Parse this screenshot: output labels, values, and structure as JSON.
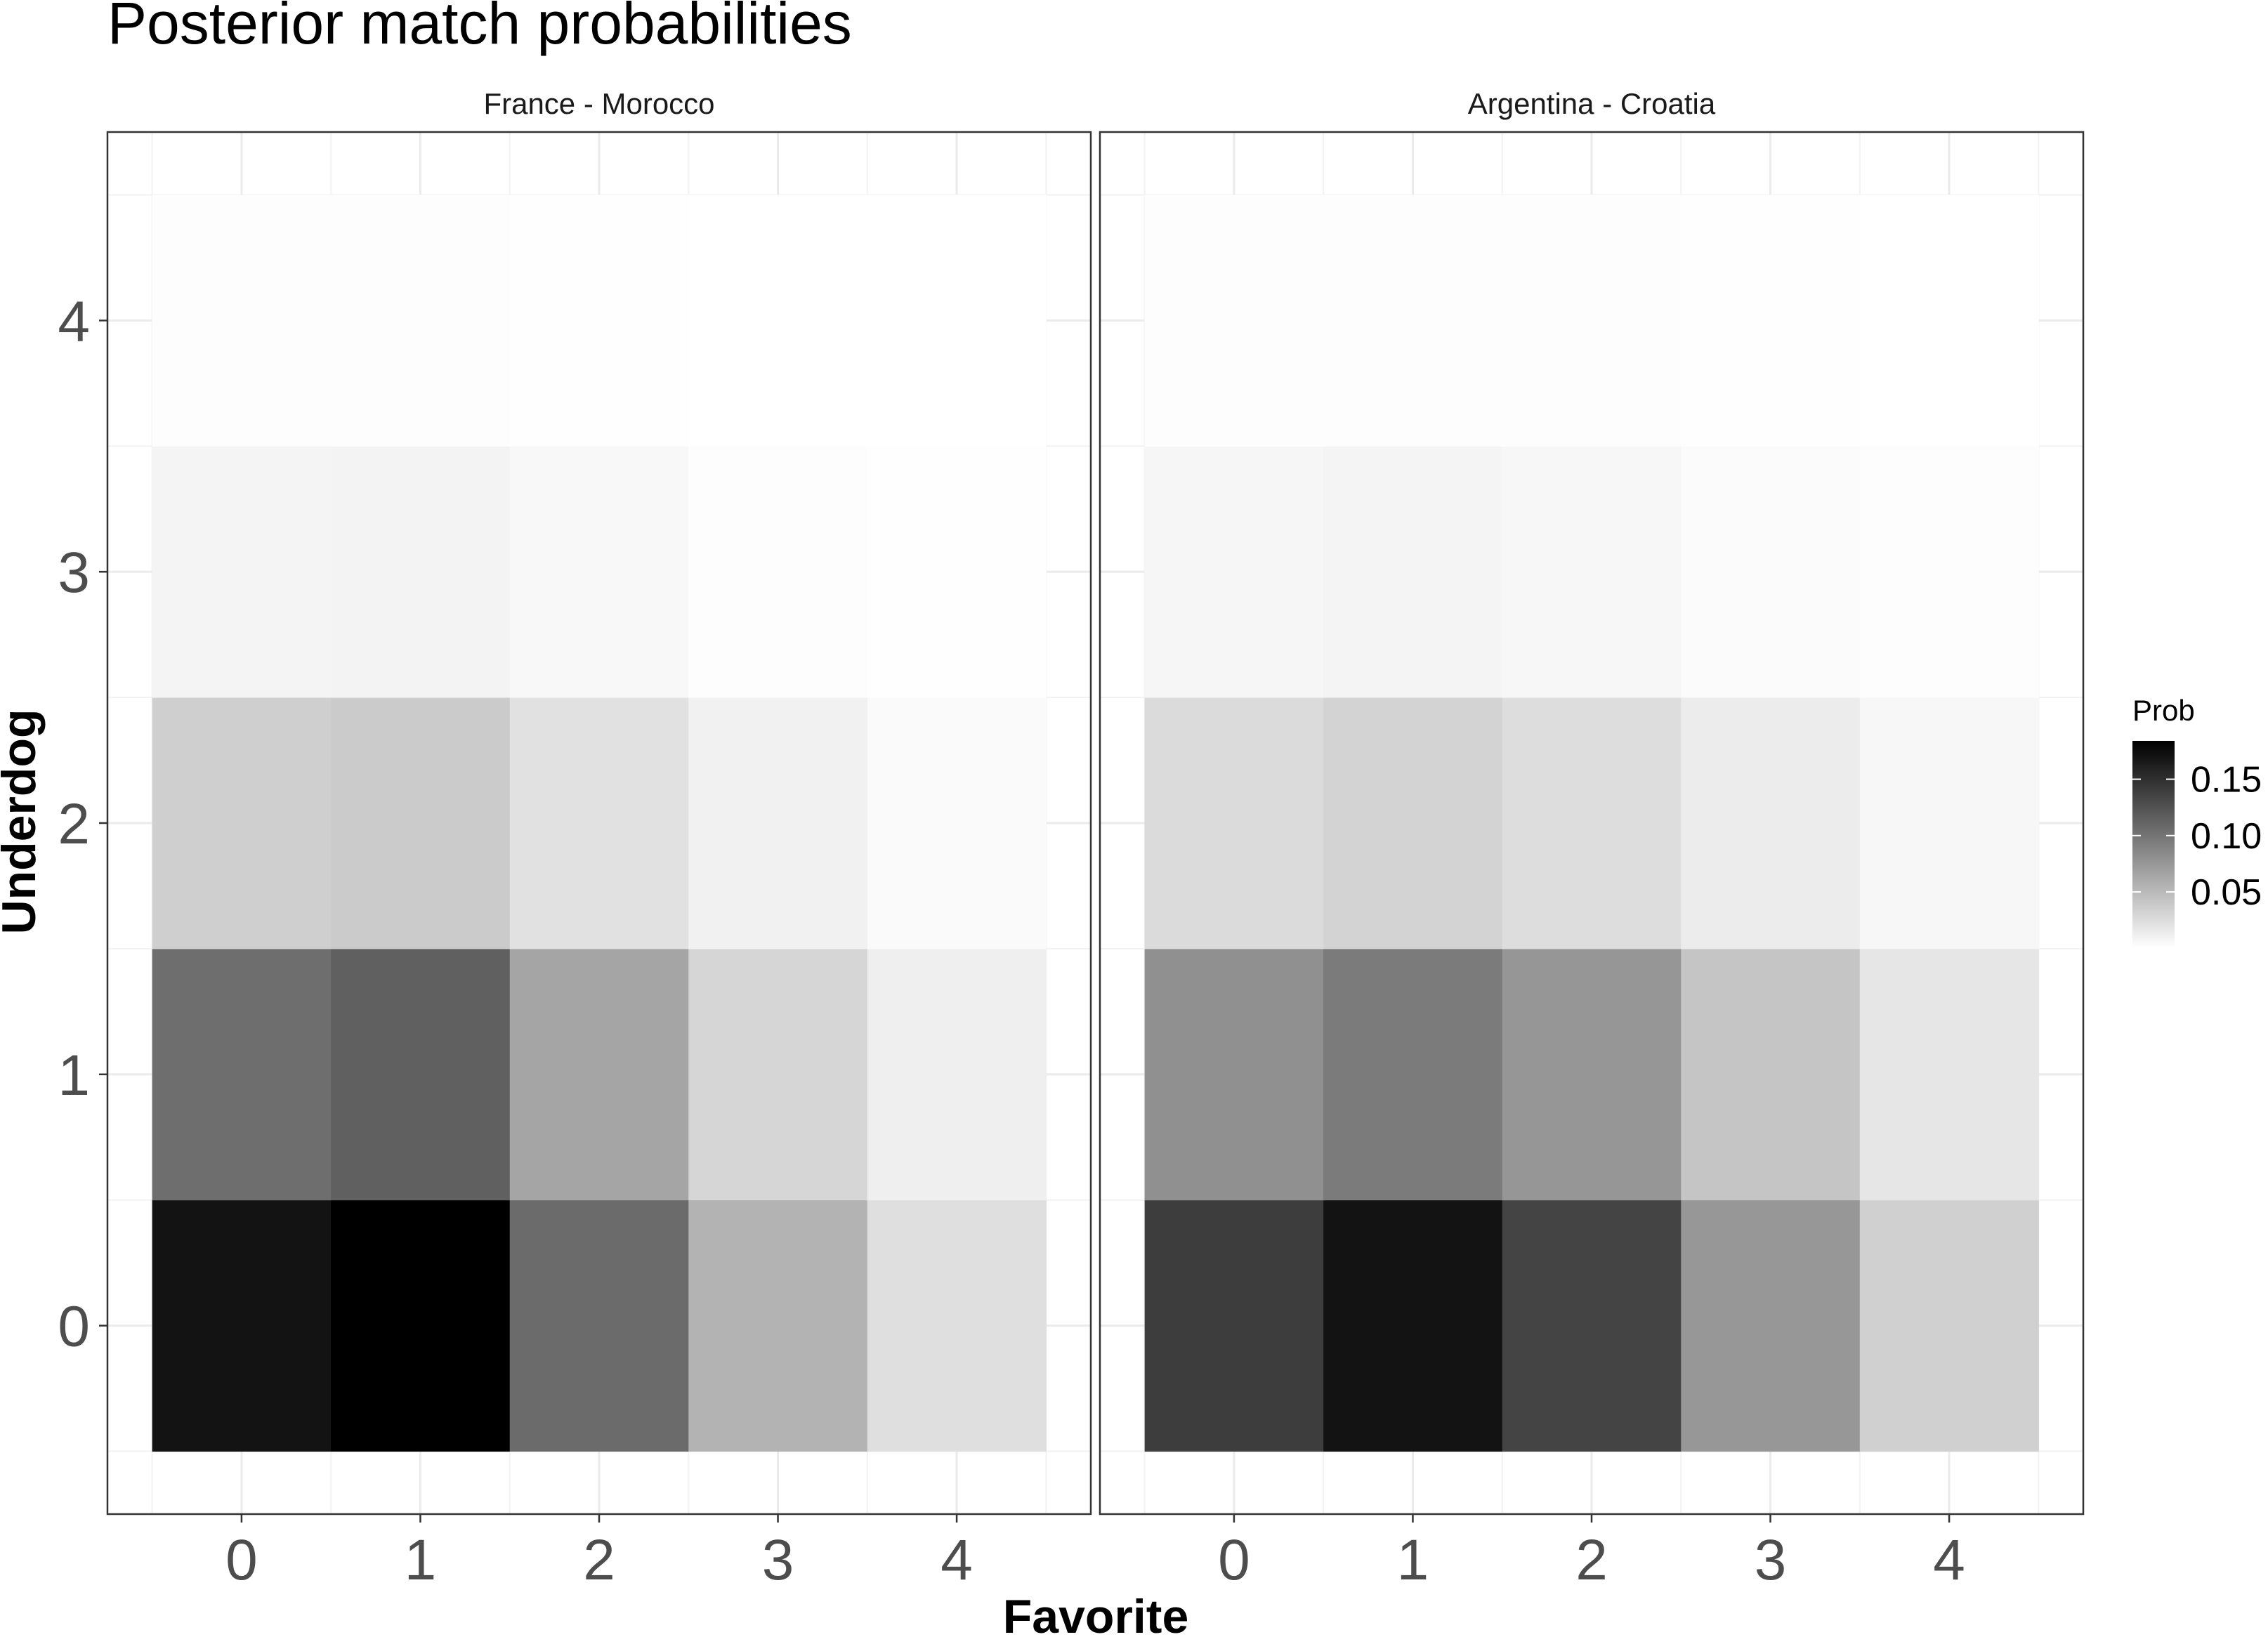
{
  "chart_data": {
    "type": "heatmap",
    "title": "Posterior match probabilities",
    "xlabel": "Favorite",
    "ylabel": "Underdog",
    "x_ticks": [
      "0",
      "1",
      "2",
      "3",
      "4"
    ],
    "y_ticks": [
      "0",
      "1",
      "2",
      "3",
      "4"
    ],
    "x_range": [
      -0.75,
      4.75
    ],
    "y_range": [
      -0.75,
      4.75
    ],
    "grid": true,
    "panels": [
      {
        "name": "France - Morocco",
        "cells": [
          [
            0.17,
            0.184,
            0.107,
            0.055,
            0.023
          ],
          [
            0.105,
            0.115,
            0.065,
            0.03,
            0.012
          ],
          [
            0.035,
            0.038,
            0.022,
            0.01,
            0.004
          ],
          [
            0.008,
            0.009,
            0.005,
            0.002,
            0.001
          ],
          [
            0.002,
            0.002,
            0.001,
            0.0005,
            0.0002
          ]
        ]
      },
      {
        "name": "Argentina - Croatia",
        "cells": [
          [
            0.14,
            0.17,
            0.135,
            0.075,
            0.034
          ],
          [
            0.08,
            0.095,
            0.076,
            0.042,
            0.018
          ],
          [
            0.026,
            0.032,
            0.025,
            0.014,
            0.006
          ],
          [
            0.007,
            0.008,
            0.006,
            0.003,
            0.0015
          ],
          [
            0.002,
            0.002,
            0.0015,
            0.0007,
            0.0003
          ]
        ]
      }
    ],
    "legend": {
      "title": "Prob",
      "ticks": [
        0.05,
        0.1,
        0.15
      ],
      "tick_labels": [
        "0.05",
        "0.10",
        "0.15"
      ],
      "range": [
        0.0002,
        0.184
      ],
      "position": "right"
    }
  }
}
